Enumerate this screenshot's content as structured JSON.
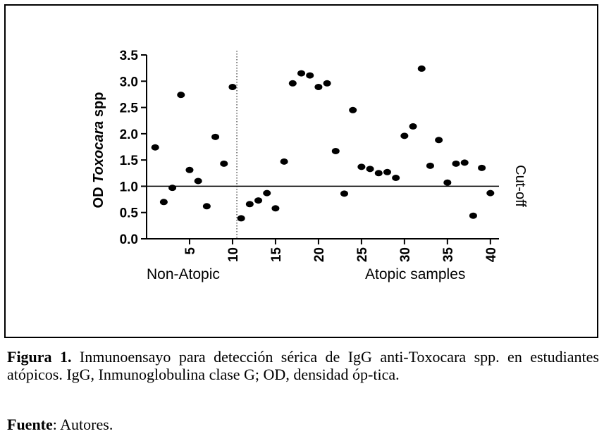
{
  "chart_data": {
    "type": "scatter",
    "ylabel_prefix": "OD ",
    "ylabel_italic": "Toxocara",
    "ylabel_suffix": " spp",
    "xlim": [
      0,
      41
    ],
    "ylim": [
      0,
      3.5
    ],
    "y_ticks": [
      "0.0",
      "0.5",
      "1.0",
      "1.5",
      "2.0",
      "2.5",
      "3.0",
      "3.5"
    ],
    "y_tick_values": [
      0,
      0.5,
      1,
      1.5,
      2,
      2.5,
      3,
      3.5
    ],
    "x_ticks": [
      "5",
      "10",
      "15",
      "20",
      "25",
      "30",
      "35",
      "40"
    ],
    "x_tick_values": [
      5,
      10,
      15,
      20,
      25,
      30,
      35,
      40
    ],
    "cutoff_value": 1.0,
    "cutoff_label": "Cut-off",
    "divider_x": 10.5,
    "group_labels": [
      "Non-Atopic",
      "Atopic samples"
    ],
    "points": [
      {
        "x": 1,
        "y": 1.74
      },
      {
        "x": 2,
        "y": 0.7
      },
      {
        "x": 3,
        "y": 0.97
      },
      {
        "x": 4,
        "y": 2.74
      },
      {
        "x": 5,
        "y": 1.31
      },
      {
        "x": 6,
        "y": 1.1
      },
      {
        "x": 7,
        "y": 0.62
      },
      {
        "x": 8,
        "y": 1.94
      },
      {
        "x": 9,
        "y": 1.43
      },
      {
        "x": 10,
        "y": 2.89
      },
      {
        "x": 11,
        "y": 0.39
      },
      {
        "x": 12,
        "y": 0.66
      },
      {
        "x": 13,
        "y": 0.73
      },
      {
        "x": 14,
        "y": 0.87
      },
      {
        "x": 15,
        "y": 0.58
      },
      {
        "x": 16,
        "y": 1.47
      },
      {
        "x": 17,
        "y": 2.96
      },
      {
        "x": 18,
        "y": 3.15
      },
      {
        "x": 19,
        "y": 3.11
      },
      {
        "x": 20,
        "y": 2.89
      },
      {
        "x": 21,
        "y": 2.96
      },
      {
        "x": 22,
        "y": 1.67
      },
      {
        "x": 23,
        "y": 0.86
      },
      {
        "x": 24,
        "y": 2.45
      },
      {
        "x": 25,
        "y": 1.37
      },
      {
        "x": 26,
        "y": 1.33
      },
      {
        "x": 27,
        "y": 1.25
      },
      {
        "x": 28,
        "y": 1.27
      },
      {
        "x": 29,
        "y": 1.16
      },
      {
        "x": 30,
        "y": 1.96
      },
      {
        "x": 31,
        "y": 2.14
      },
      {
        "x": 32,
        "y": 3.24
      },
      {
        "x": 33,
        "y": 1.39
      },
      {
        "x": 34,
        "y": 1.88
      },
      {
        "x": 35,
        "y": 1.07
      },
      {
        "x": 36,
        "y": 1.43
      },
      {
        "x": 37,
        "y": 1.45
      },
      {
        "x": 38,
        "y": 0.44
      },
      {
        "x": 39,
        "y": 1.35
      },
      {
        "x": 40,
        "y": 0.87
      }
    ]
  },
  "caption": {
    "figure_label": "Figura 1.",
    "figure_text": " Inmunoensayo para detección sérica de IgG anti-Toxocara spp. en estudiantes atópicos. IgG, Inmunoglobulina clase G; OD, densidad óp-tica.",
    "source_label": "Fuente",
    "source_text": ": Autores."
  }
}
